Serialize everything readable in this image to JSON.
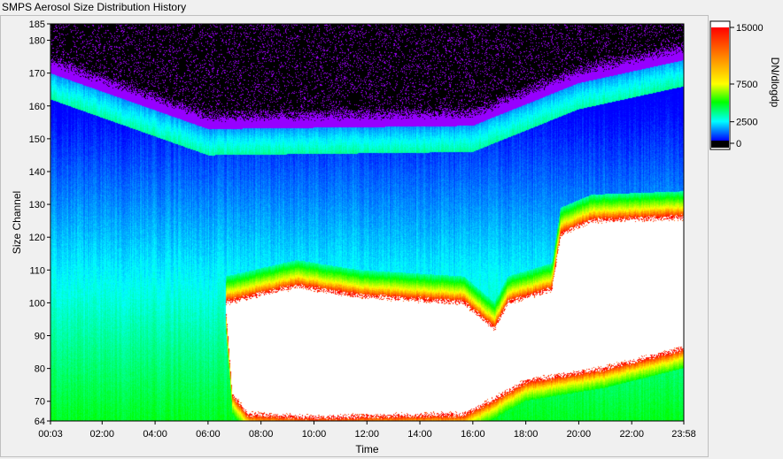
{
  "window": {
    "title": "SMPS Aerosol Size Distribution History"
  },
  "chart_data": {
    "type": "heatmap",
    "xlabel": "Time",
    "ylabel": "Size Channel",
    "x_range": [
      "00:03",
      "23:58"
    ],
    "x_ticks": [
      "00:03",
      "02:00",
      "04:00",
      "06:00",
      "08:00",
      "10:00",
      "12:00",
      "14:00",
      "16:00",
      "18:00",
      "20:00",
      "22:00",
      "23:58"
    ],
    "x_tick_minutes": [
      3,
      120,
      240,
      360,
      480,
      600,
      720,
      840,
      960,
      1080,
      1200,
      1320,
      1438
    ],
    "ylim": [
      64,
      185
    ],
    "y_ticks": [
      64,
      70,
      80,
      90,
      100,
      110,
      120,
      130,
      140,
      150,
      160,
      170,
      180,
      185
    ],
    "colorbar": {
      "label": "DN/dlogdp",
      "ticks": [
        0,
        2500,
        7500,
        15000
      ],
      "range": [
        0,
        15000
      ],
      "below_range_color": "#000000",
      "above_range_color": "#ffffff",
      "colors": [
        "#0000ff",
        "#00ffff",
        "#00ff00",
        "#ffff00",
        "#ff0000"
      ]
    },
    "profile_description_points": {
      "bottom_of_black_region_channel": [
        {
          "minute": 3,
          "channel": 174
        },
        {
          "minute": 360,
          "channel": 157
        },
        {
          "minute": 960,
          "channel": 158
        },
        {
          "minute": 1200,
          "channel": 171
        },
        {
          "minute": 1438,
          "channel": 178
        }
      ],
      "bottom_of_saturated_region_channel": [
        {
          "minute": 400,
          "channel": 98
        },
        {
          "minute": 415,
          "channel": 72
        },
        {
          "minute": 450,
          "channel": 66
        },
        {
          "minute": 600,
          "channel": 65
        },
        {
          "minute": 940,
          "channel": 66
        },
        {
          "minute": 1000,
          "channel": 70
        },
        {
          "minute": 1080,
          "channel": 76
        },
        {
          "minute": 1260,
          "channel": 80
        },
        {
          "minute": 1438,
          "channel": 86
        }
      ],
      "top_of_saturated_region_channel": [
        {
          "minute": 400,
          "channel": 100
        },
        {
          "minute": 560,
          "channel": 105
        },
        {
          "minute": 700,
          "channel": 102
        },
        {
          "minute": 940,
          "channel": 100
        },
        {
          "minute": 1010,
          "channel": 92
        },
        {
          "minute": 1040,
          "channel": 100
        },
        {
          "minute": 1140,
          "channel": 104
        },
        {
          "minute": 1160,
          "channel": 121
        },
        {
          "minute": 1230,
          "channel": 125
        },
        {
          "minute": 1438,
          "channel": 126
        }
      ]
    }
  }
}
